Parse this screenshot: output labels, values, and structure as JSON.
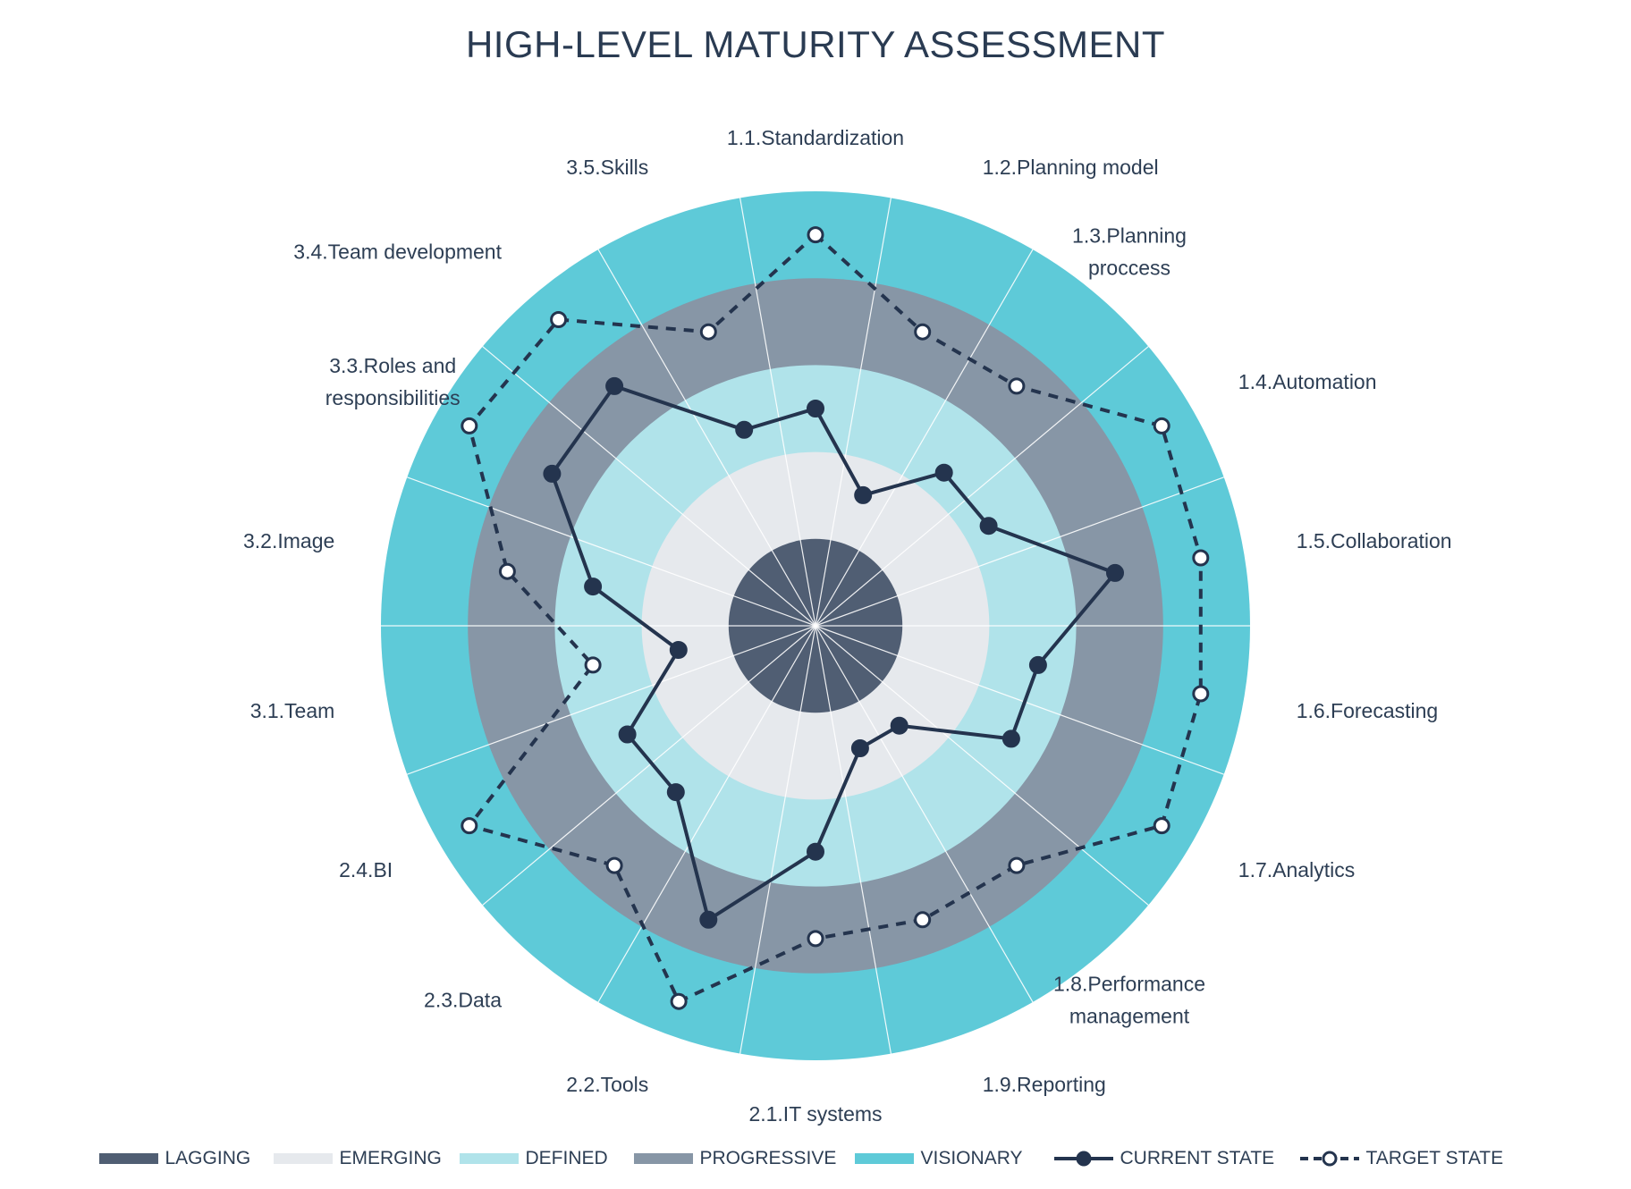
{
  "title": "HIGH-LEVEL MATURITY ASSESSMENT",
  "chart_data": {
    "type": "radar",
    "title": "HIGH-LEVEL MATURITY ASSESSMENT",
    "categories": [
      "1.1.Standardization",
      "1.2.Planning model",
      "1.3.Planning proccess",
      "1.4.Automation",
      "1.5.Collaboration",
      "1.6.Forecasting",
      "1.7.Analytics",
      "1.8.Performance management",
      "1.9.Reporting",
      "2.1.IT systems",
      "2.2.Tools",
      "2.3.Data",
      "2.4.BI",
      "3.1.Team",
      "3.2.Image",
      "3.3.Roles and responsibilities",
      "3.4.Team development",
      "3.5.Skills"
    ],
    "scale_max": 5,
    "bands": [
      {
        "name": "LAGGING",
        "color": "#505e73"
      },
      {
        "name": "EMERGING",
        "color": "#e6e9ed"
      },
      {
        "name": "DEFINED",
        "color": "#b0e3ea"
      },
      {
        "name": "PROGRESSIVE",
        "color": "#8796a6"
      },
      {
        "name": "VISIONARY",
        "color": "#5ecad8"
      }
    ],
    "series": [
      {
        "name": "CURRENT STATE",
        "style": "solid",
        "color": "#24344e",
        "values": [
          2.5,
          1.6,
          2.3,
          2.3,
          3.5,
          2.6,
          2.6,
          1.5,
          1.5,
          2.6,
          3.6,
          2.5,
          2.5,
          1.6,
          2.6,
          3.5,
          3.6,
          2.4
        ]
      },
      {
        "name": "TARGET STATE",
        "style": "dashed",
        "color": "#24344e",
        "values": [
          4.5,
          3.6,
          3.6,
          4.6,
          4.5,
          4.5,
          4.6,
          3.6,
          3.6,
          3.6,
          4.6,
          3.6,
          4.6,
          2.6,
          3.6,
          4.6,
          4.6,
          3.6
        ]
      }
    ],
    "legend_position": "bottom"
  }
}
